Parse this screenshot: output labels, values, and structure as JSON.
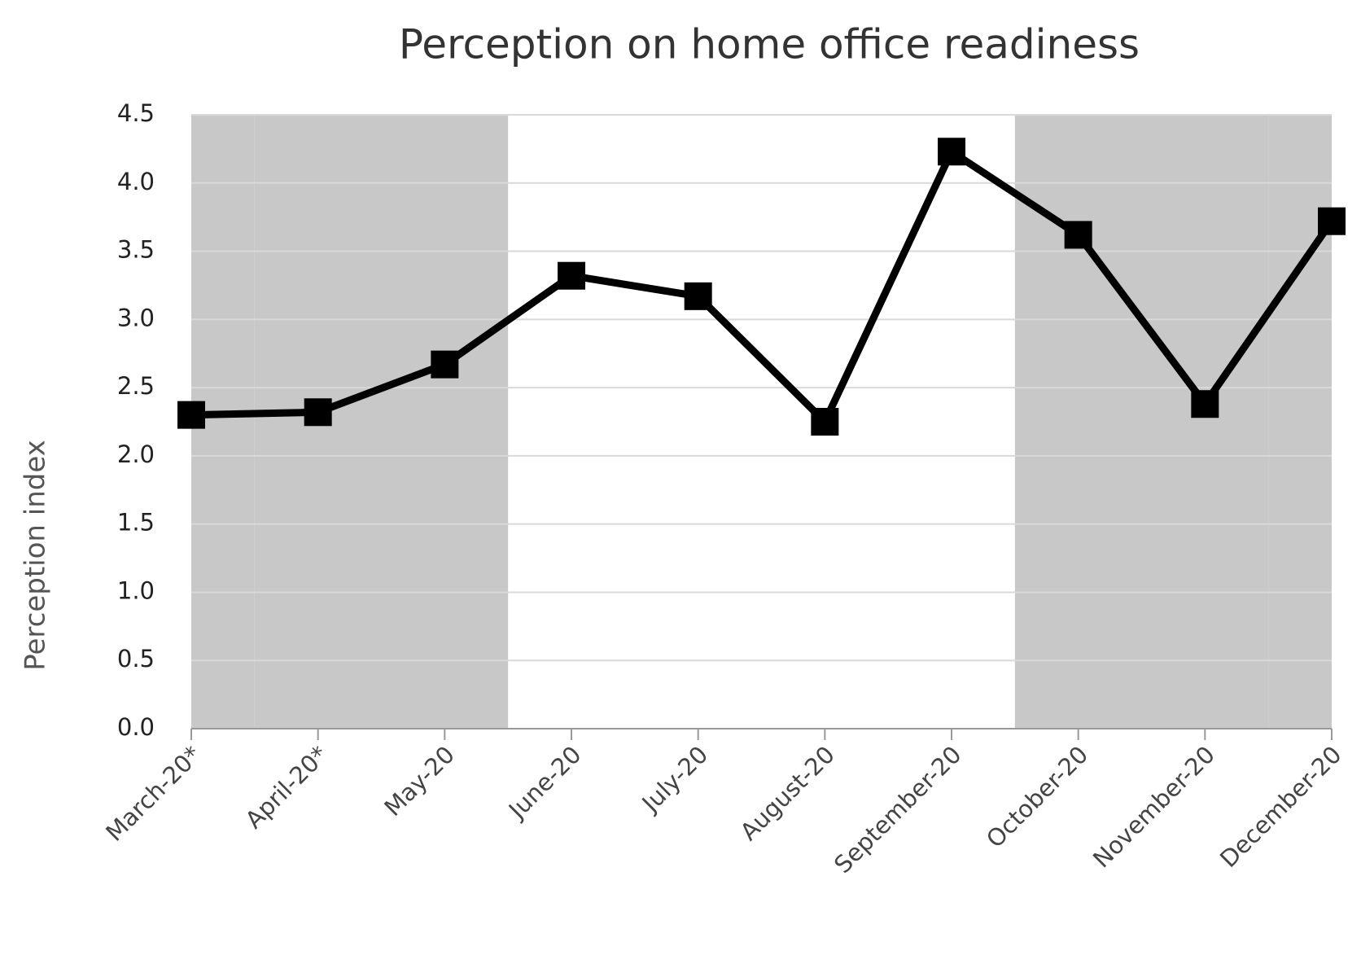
{
  "chart_data": {
    "type": "line",
    "title": "Perception on home office readiness",
    "y_label": "Perception index",
    "categories": [
      "March-20*",
      "April-20*",
      "May-20",
      "June-20",
      "July-20",
      "August-20",
      "September-20",
      "October-20",
      "November-20",
      "December-20"
    ],
    "values": [
      2.3,
      2.32,
      2.67,
      3.32,
      3.17,
      2.25,
      4.23,
      3.62,
      2.38,
      3.72
    ],
    "color": "#000000",
    "shaded": [
      true,
      true,
      true,
      false,
      false,
      false,
      false,
      true,
      true,
      true
    ],
    "shade_color": "#c8c8c8",
    "ylim": [
      0,
      4.5
    ],
    "yticks": [
      {
        "value": 0,
        "label": "0.0"
      },
      0.5,
      {
        "value": 1,
        "label": "1.0"
      },
      1.5,
      {
        "value": 2,
        "label": "2.0"
      },
      2.5,
      {
        "value": 3,
        "label": "3.0"
      },
      3.5,
      {
        "value": 4,
        "label": "4.0"
      },
      4.5
    ],
    "grid": true
  }
}
